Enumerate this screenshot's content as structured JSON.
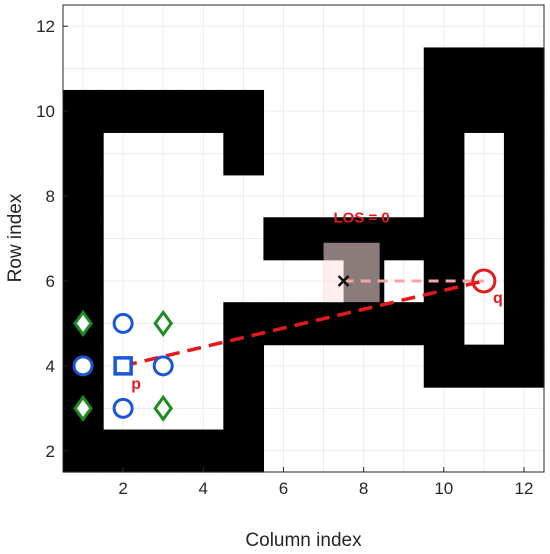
{
  "chart_data": {
    "type": "scatter",
    "title": "",
    "xlabel": "Column index",
    "ylabel": "Row index",
    "xlim": [
      0.5,
      12.5
    ],
    "ylim": [
      1.5,
      12.5
    ],
    "xticks": [
      "2",
      "4",
      "6",
      "8",
      "10",
      "12"
    ],
    "yticks": [
      "2",
      "4",
      "6",
      "8",
      "10",
      "12"
    ],
    "grid": true,
    "colors": {
      "obstacle": "#000000",
      "circle": "#1a56db",
      "diamond": "#1e8c1e",
      "los": "#e31a1c",
      "los_faded": "#f4a6a6",
      "highlight": "#fde0e0"
    },
    "obstacles": [
      {
        "col": 1,
        "rows": [
          2,
          3,
          4,
          5,
          6,
          7,
          8,
          9,
          10
        ]
      },
      {
        "col": 2,
        "rows": [
          2,
          10
        ]
      },
      {
        "col": 3,
        "rows": [
          2,
          10
        ]
      },
      {
        "col": 4,
        "rows": [
          2,
          10
        ]
      },
      {
        "col": 5,
        "rows": [
          2,
          3,
          4,
          5,
          9,
          10
        ]
      },
      {
        "col": 6,
        "rows": [
          5,
          7
        ]
      },
      {
        "col": 7,
        "rows": [
          5,
          7
        ]
      },
      {
        "col": 8,
        "rows": [
          5,
          6,
          7
        ]
      },
      {
        "col": 9,
        "rows": [
          5,
          7
        ]
      },
      {
        "col": 10,
        "rows": [
          4,
          5,
          6,
          7,
          8,
          9,
          10,
          11
        ]
      },
      {
        "col": 11,
        "rows": [
          4,
          10,
          11
        ]
      },
      {
        "col": 12,
        "rows": [
          4,
          5,
          6,
          7,
          8,
          9,
          10,
          11
        ]
      }
    ],
    "circles": [
      [
        2,
        5
      ],
      [
        1,
        4
      ],
      [
        3,
        4
      ],
      [
        2,
        3
      ]
    ],
    "diamonds": [
      [
        1,
        5
      ],
      [
        3,
        5
      ],
      [
        1,
        3
      ],
      [
        3,
        3
      ]
    ],
    "points": [
      {
        "label": "p",
        "x": 2,
        "y": 4,
        "marker": "square"
      },
      {
        "label": "q",
        "x": 11,
        "y": 6,
        "marker": "circle"
      }
    ],
    "los_lines": [
      {
        "from": [
          2,
          4
        ],
        "to": [
          11,
          6
        ],
        "style": "dashed-bold"
      },
      {
        "from": [
          7.5,
          6
        ],
        "to": [
          11,
          6
        ],
        "style": "dashed-faded"
      }
    ],
    "cross": {
      "x": 7.5,
      "y": 6
    },
    "highlight_cell": {
      "x": [
        7,
        8.4
      ],
      "y": [
        5.5,
        6.9
      ]
    },
    "annotation": {
      "text": "LOS = 0",
      "x": 8,
      "y": 7.5
    }
  }
}
